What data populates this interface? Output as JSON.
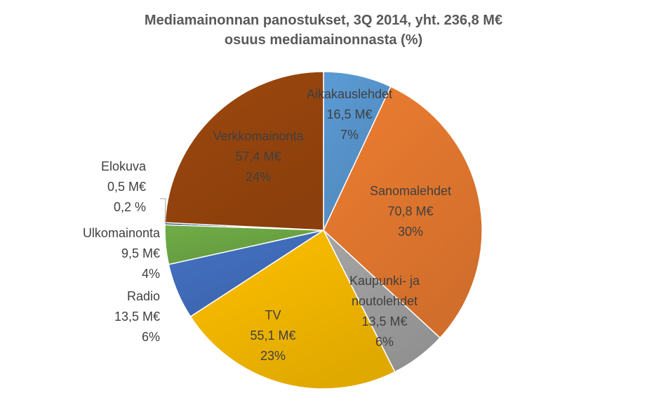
{
  "chart_data": {
    "type": "pie",
    "title": "Mediamainonnan  panostukset, 3Q 2014, yht. 236,8 M€",
    "subtitle": "osuus mediamainonnasta  (%)",
    "slices": [
      {
        "name": "Aikakauslehdet",
        "value": 16.5,
        "value_label": "16,5 M€",
        "pct_label": "7%",
        "color": "#5B9BD5"
      },
      {
        "name": "Sanomalehdet",
        "value": 70.8,
        "value_label": "70,8 M€",
        "pct_label": "30%",
        "color": "#ED7D31"
      },
      {
        "name": "Kaupunki- ja noutolehdet",
        "value": 13.5,
        "value_label": "13,5 M€",
        "pct_label": "6%",
        "color": "#A5A5A5"
      },
      {
        "name": "TV",
        "value": 55.1,
        "value_label": "55,1 M€",
        "pct_label": "23%",
        "color": "#FFC000"
      },
      {
        "name": "Radio",
        "value": 13.5,
        "value_label": "13,5 M€",
        "pct_label": "6%",
        "color": "#4472C4"
      },
      {
        "name": "Ulkomainonta",
        "value": 9.5,
        "value_label": "9,5 M€",
        "pct_label": "4%",
        "color": "#70AD47"
      },
      {
        "name": "Elokuva",
        "value": 0.5,
        "value_label": "0,5 M€",
        "pct_label": "0,2 %",
        "color": "#264478"
      },
      {
        "name": "Verkkomainonta",
        "value": 57.4,
        "value_label": "57,4 M€",
        "pct_label": "24%",
        "color": "#9E480E"
      }
    ]
  }
}
